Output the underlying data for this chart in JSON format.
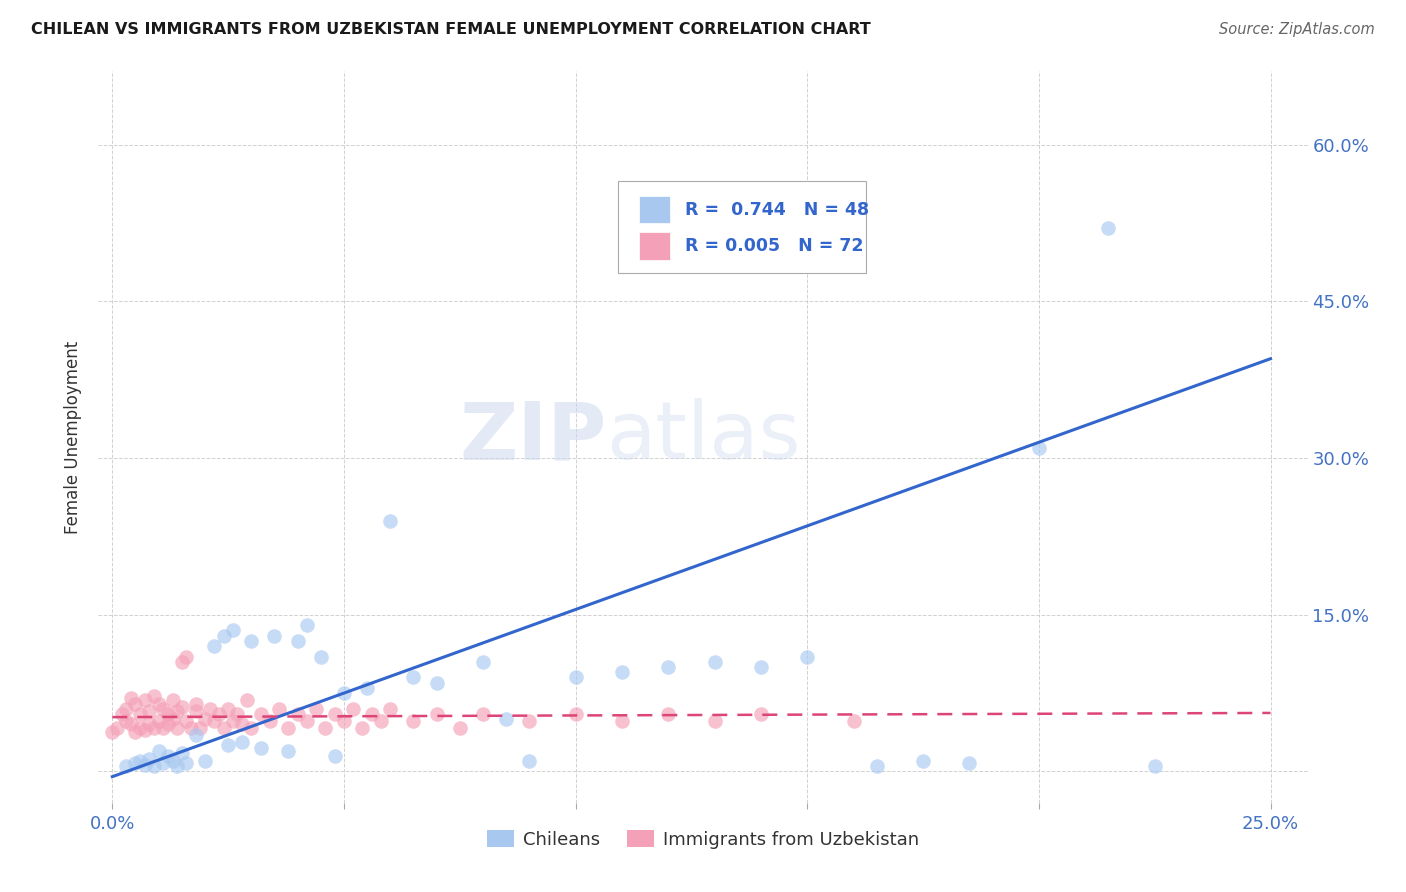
{
  "title": "CHILEAN VS IMMIGRANTS FROM UZBEKISTAN FEMALE UNEMPLOYMENT CORRELATION CHART",
  "source": "Source: ZipAtlas.com",
  "xlabel_color": "#4472c4",
  "ylabel": "Female Unemployment",
  "xlim": [
    -0.003,
    0.258
  ],
  "ylim": [
    -0.03,
    0.67
  ],
  "xtick_positions": [
    0.0,
    0.05,
    0.1,
    0.15,
    0.2,
    0.25
  ],
  "xtick_labels": [
    "0.0%",
    "",
    "",
    "",
    "",
    "25.0%"
  ],
  "ytick_positions": [
    0.0,
    0.15,
    0.3,
    0.45,
    0.6
  ],
  "ytick_labels_right": [
    "",
    "15.0%",
    "30.0%",
    "45.0%",
    "60.0%"
  ],
  "grid_color": "#cccccc",
  "background_color": "#ffffff",
  "chilean_color": "#a8c8f0",
  "uzbekistan_color": "#f4a0b8",
  "chilean_line_color": "#3366cc",
  "uzbekistan_line_color": "#dd4477",
  "watermark": "ZIPatlas",
  "chilean_line_x0": 0.0,
  "chilean_line_y0": -0.005,
  "chilean_line_x1": 0.25,
  "chilean_line_y1": 0.395,
  "uzbek_line_x0": 0.0,
  "uzbek_line_y0": 0.052,
  "uzbek_line_x1": 0.25,
  "uzbek_line_y1": 0.056,
  "chilean_x": [
    0.003,
    0.005,
    0.006,
    0.007,
    0.008,
    0.009,
    0.01,
    0.011,
    0.012,
    0.013,
    0.014,
    0.015,
    0.016,
    0.018,
    0.02,
    0.022,
    0.024,
    0.025,
    0.026,
    0.028,
    0.03,
    0.032,
    0.035,
    0.038,
    0.04,
    0.042,
    0.045,
    0.048,
    0.05,
    0.055,
    0.06,
    0.065,
    0.07,
    0.08,
    0.085,
    0.09,
    0.1,
    0.11,
    0.12,
    0.13,
    0.14,
    0.15,
    0.165,
    0.175,
    0.185,
    0.2,
    0.215,
    0.225
  ],
  "chilean_y": [
    0.005,
    0.008,
    0.01,
    0.006,
    0.012,
    0.005,
    0.02,
    0.008,
    0.015,
    0.01,
    0.005,
    0.018,
    0.008,
    0.035,
    0.01,
    0.12,
    0.13,
    0.025,
    0.135,
    0.028,
    0.125,
    0.022,
    0.13,
    0.02,
    0.125,
    0.14,
    0.11,
    0.015,
    0.075,
    0.08,
    0.24,
    0.09,
    0.085,
    0.105,
    0.05,
    0.01,
    0.09,
    0.095,
    0.1,
    0.105,
    0.1,
    0.11,
    0.005,
    0.01,
    0.008,
    0.31,
    0.52,
    0.005
  ],
  "uzbekistan_x": [
    0.0,
    0.001,
    0.002,
    0.003,
    0.003,
    0.004,
    0.004,
    0.005,
    0.005,
    0.006,
    0.006,
    0.007,
    0.007,
    0.008,
    0.008,
    0.009,
    0.009,
    0.01,
    0.01,
    0.011,
    0.011,
    0.012,
    0.012,
    0.013,
    0.013,
    0.014,
    0.014,
    0.015,
    0.015,
    0.016,
    0.016,
    0.017,
    0.018,
    0.018,
    0.019,
    0.02,
    0.021,
    0.022,
    0.023,
    0.024,
    0.025,
    0.026,
    0.027,
    0.028,
    0.029,
    0.03,
    0.032,
    0.034,
    0.036,
    0.038,
    0.04,
    0.042,
    0.044,
    0.046,
    0.048,
    0.05,
    0.052,
    0.054,
    0.056,
    0.058,
    0.06,
    0.065,
    0.07,
    0.075,
    0.08,
    0.09,
    0.1,
    0.11,
    0.12,
    0.13,
    0.14,
    0.16
  ],
  "uzbekistan_y": [
    0.038,
    0.042,
    0.055,
    0.048,
    0.06,
    0.045,
    0.07,
    0.038,
    0.065,
    0.042,
    0.055,
    0.04,
    0.068,
    0.045,
    0.058,
    0.042,
    0.072,
    0.048,
    0.065,
    0.042,
    0.06,
    0.045,
    0.055,
    0.05,
    0.068,
    0.042,
    0.058,
    0.105,
    0.062,
    0.048,
    0.11,
    0.042,
    0.058,
    0.065,
    0.042,
    0.05,
    0.06,
    0.048,
    0.055,
    0.042,
    0.06,
    0.048,
    0.055,
    0.045,
    0.068,
    0.042,
    0.055,
    0.048,
    0.06,
    0.042,
    0.055,
    0.048,
    0.06,
    0.042,
    0.055,
    0.048,
    0.06,
    0.042,
    0.055,
    0.048,
    0.06,
    0.048,
    0.055,
    0.042,
    0.055,
    0.048,
    0.055,
    0.048,
    0.055,
    0.048,
    0.055,
    0.048
  ]
}
